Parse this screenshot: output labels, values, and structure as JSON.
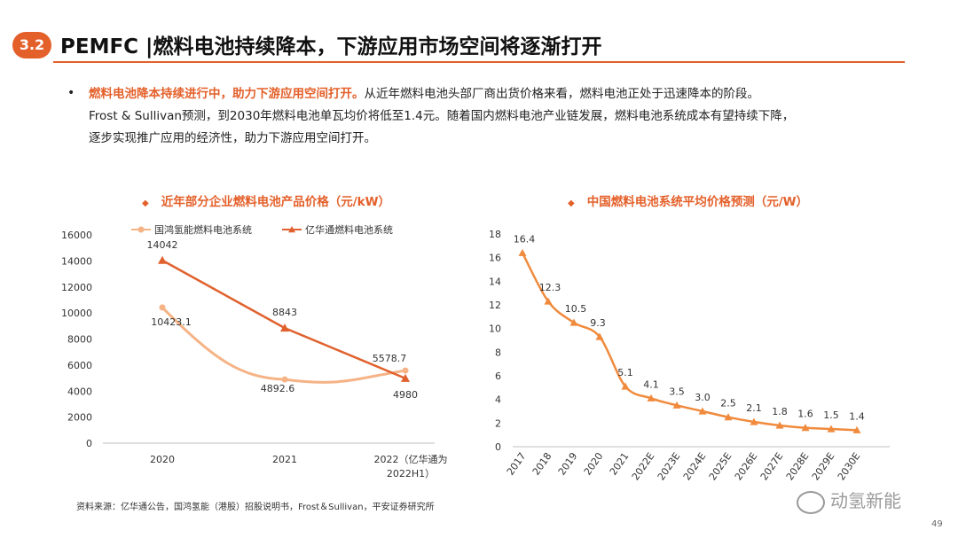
{
  "header": {
    "section_number": "3.2",
    "title": "PEMFC |燃料电池持续降本，下游应用市场空间将逐渐打开"
  },
  "bullet": {
    "highlight": "燃料电池降本持续进行中，助力下游应用空间打开。",
    "line1_rest": "从近年燃料电池头部厂商出货价格来看，燃料电池正处于迅速降本的阶段。",
    "line2": "Frost & Sullivan预测，到2030年燃料电池单瓦均价将低至1.4元。随着国内燃料电池产业链发展，燃料电池系统成本有望持续下降，",
    "line3": "逐步实现推广应用的经济性，助力下游应用空间打开。"
  },
  "chart_data": [
    {
      "type": "line",
      "title": "近年部分企业燃料电池产品价格（元/kW）",
      "categories": [
        "2020",
        "2021",
        "2022（亿华通为2022H1）"
      ],
      "category_lines": [
        [
          "2020"
        ],
        [
          "2021"
        ],
        [
          "2022（亿华通为",
          "2022H1）"
        ]
      ],
      "series": [
        {
          "name": "国鸿氢能燃料电池系统",
          "values": [
            10423.1,
            4892.6,
            5578.7
          ],
          "labels": [
            "10423.1",
            "4892.6",
            "5578.7"
          ],
          "color": "#f5b386",
          "marker": "circle"
        },
        {
          "name": "亿华通燃料电池系统",
          "values": [
            14042,
            8843,
            4980
          ],
          "labels": [
            "14042",
            "8843",
            "4980"
          ],
          "color": "#e0612e",
          "marker": "triangle"
        }
      ],
      "ylim": [
        0,
        16000
      ],
      "yticks": [
        0,
        2000,
        4000,
        6000,
        8000,
        10000,
        12000,
        14000,
        16000
      ],
      "grid": false,
      "legend_position": "top"
    },
    {
      "type": "line",
      "title": "中国燃料电池系统平均价格预测（元/W）",
      "categories": [
        "2017",
        "2018",
        "2019",
        "2020",
        "2021",
        "2022E",
        "2023E",
        "2024E",
        "2025E",
        "2026E",
        "2027E",
        "2028E",
        "2029E",
        "2030E"
      ],
      "series": [
        {
          "values": [
            16.4,
            12.3,
            10.5,
            9.3,
            5.1,
            4.1,
            3.5,
            3.0,
            2.5,
            2.1,
            1.8,
            1.6,
            1.5,
            1.4
          ],
          "labels": [
            "16.4",
            "12.3",
            "10.5",
            "9.3",
            "5.1",
            "4.1",
            "3.5",
            "3.0",
            "2.5",
            "2.1",
            "1.8",
            "1.6",
            "1.5",
            "1.4"
          ],
          "color": "#f08a3c",
          "marker": "triangle"
        }
      ],
      "ylim": [
        0,
        18
      ],
      "yticks": [
        0,
        2,
        4,
        6,
        8,
        10,
        12,
        14,
        16,
        18
      ],
      "grid": false
    }
  ],
  "footer": {
    "source": "资料来源：亿华通公告，国鸿氢能（港股）招股说明书，Frost＆Sullivan，平安证券研究所",
    "watermark": "动氢新能",
    "page_number": "49"
  },
  "colors": {
    "accent": "#e4602a"
  }
}
